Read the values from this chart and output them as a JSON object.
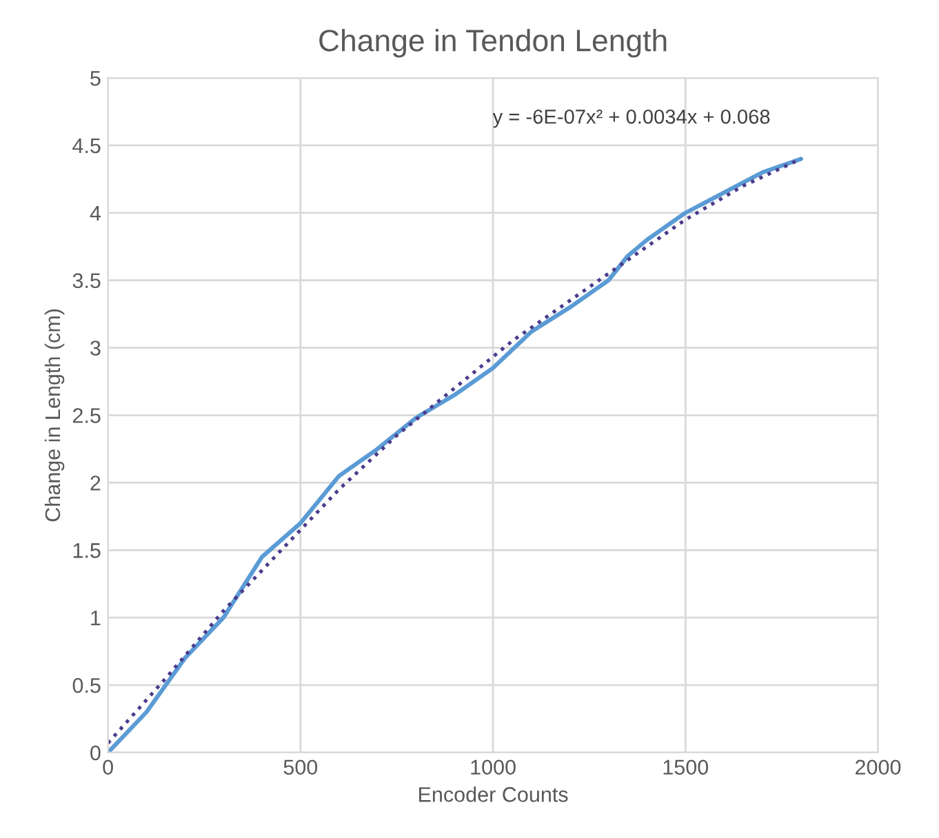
{
  "chart_data": {
    "type": "line",
    "title": "Change in Tendon Length",
    "xlabel": "Encoder Counts",
    "ylabel": "Change in Length (cm)",
    "series": [
      {
        "color": "#5b9bd5",
        "line_style": "solid",
        "x": [
          0,
          100,
          200,
          300,
          400,
          500,
          600,
          700,
          800,
          900,
          1000,
          1100,
          1200,
          1300,
          1350,
          1400,
          1500,
          1600,
          1700,
          1800
        ],
        "values": [
          0,
          0.3,
          0.7,
          1.0,
          1.45,
          1.7,
          2.05,
          2.25,
          2.48,
          2.65,
          2.85,
          3.12,
          3.3,
          3.5,
          3.68,
          3.8,
          4.0,
          4.15,
          4.3,
          4.4
        ]
      },
      {
        "color": "#4b3b8c",
        "line_style": "dotted",
        "x": [
          0,
          150,
          300,
          450,
          600,
          750,
          900,
          1050,
          1200,
          1350,
          1500,
          1650,
          1800
        ],
        "values": [
          0.07,
          0.55,
          1.05,
          1.5,
          1.95,
          2.35,
          2.7,
          3.05,
          3.35,
          3.65,
          3.95,
          4.2,
          4.4
        ]
      }
    ],
    "annotations": [
      "y = -6E-07x² + 0.0034x + 0.068"
    ],
    "xlim": [
      0,
      2000
    ],
    "xticks": [
      0,
      500,
      1000,
      1500,
      2000
    ],
    "ylim": [
      0,
      5
    ],
    "yticks": [
      0,
      0.5,
      1,
      1.5,
      2,
      2.5,
      3,
      3.5,
      4,
      4.5,
      5
    ],
    "grid": true,
    "legend": false,
    "marker": "none"
  }
}
